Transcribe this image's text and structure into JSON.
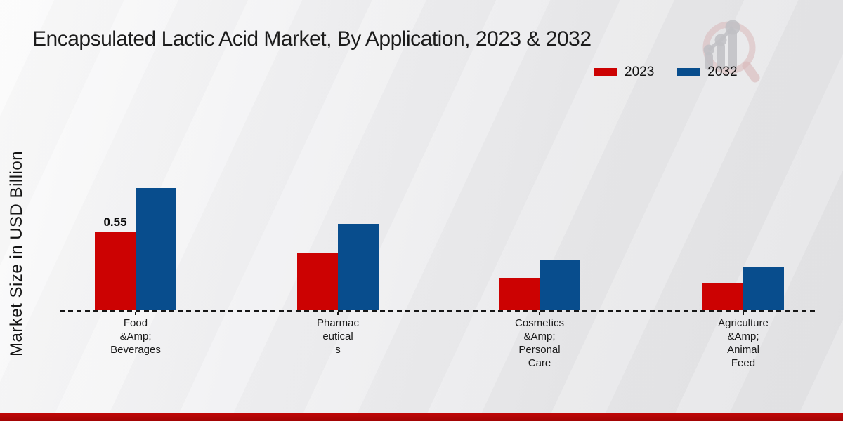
{
  "title": "Encapsulated Lactic Acid Market, By Application, 2023 & 2032",
  "y_axis_label": "Market Size in USD Billion",
  "watermark_icon": "magnifying-glass-growth-bars-logo",
  "footer": {
    "stripe_color": "#b40606"
  },
  "chart_data": {
    "type": "bar",
    "title": "Encapsulated Lactic Acid Market, By Application, 2023 & 2032",
    "xlabel": "",
    "ylabel": "Market Size in USD Billion",
    "categories": [
      "Food &Amp; Beverages",
      "Pharmaceuticals",
      "Cosmetics &Amp; Personal Care",
      "Agriculture &Amp; Animal Feed"
    ],
    "category_display_lines": [
      [
        "Food",
        "&Amp;",
        "Beverages"
      ],
      [
        "Pharmac",
        "eutical",
        "s"
      ],
      [
        "Cosmetics",
        "&Amp;",
        "Personal",
        "Care"
      ],
      [
        "Agriculture",
        "&Amp;",
        "Animal",
        "Feed"
      ]
    ],
    "series": [
      {
        "name": "2023",
        "color": "#cc0202",
        "values": [
          0.55,
          0.4,
          0.23,
          0.19
        ]
      },
      {
        "name": "2032",
        "color": "#084d8d",
        "values": [
          0.86,
          0.61,
          0.35,
          0.3
        ]
      }
    ],
    "annotations": [
      {
        "series": "2023",
        "category": "Food &Amp; Beverages",
        "text": "0.55"
      }
    ],
    "ylim": [
      0,
      1.0
    ],
    "grid": false,
    "baseline_style": "dashed",
    "legend_position": "top-right"
  }
}
